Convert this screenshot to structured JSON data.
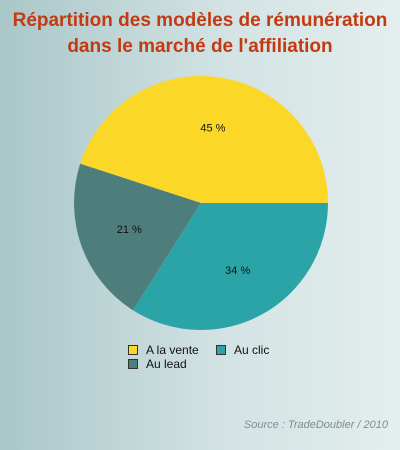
{
  "chart_data": {
    "type": "pie",
    "title_lines": [
      "Répartition des modèles de rémunération",
      "dans le marché de l'affiliation"
    ],
    "slices": [
      {
        "label": "A la vente",
        "value": 45,
        "display": "45 %",
        "color": "#fbd728"
      },
      {
        "label": "Au lead",
        "value": 21,
        "display": "21 %",
        "color": "#4e7e7c"
      },
      {
        "label": "Au clic",
        "value": 34,
        "display": "34 %",
        "color": "#2aa4a6"
      }
    ],
    "legend_position": "bottom",
    "source": "Source : TradeDoubler / 2010"
  }
}
